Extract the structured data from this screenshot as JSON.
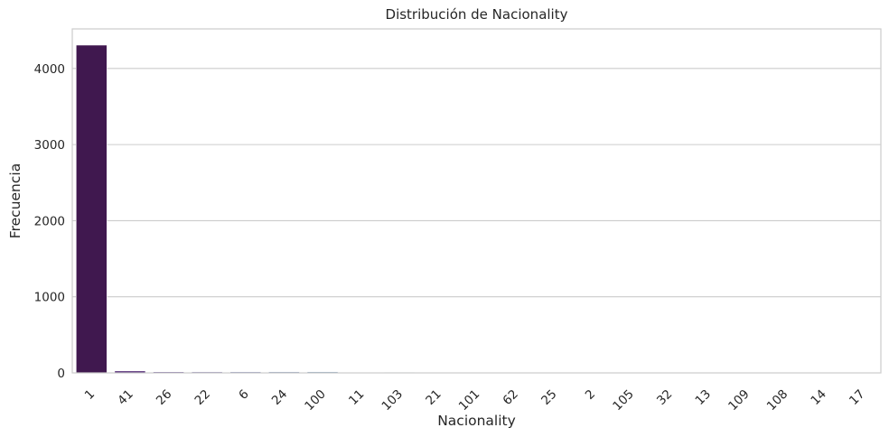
{
  "chart_data": {
    "type": "bar",
    "title": "Distribución de Nacionality",
    "xlabel": "Nacionality",
    "ylabel": "Frecuencia",
    "categories": [
      "1",
      "41",
      "26",
      "22",
      "6",
      "24",
      "100",
      "11",
      "103",
      "21",
      "101",
      "62",
      "25",
      "2",
      "105",
      "32",
      "13",
      "109",
      "108",
      "14",
      "17"
    ],
    "values": [
      4307,
      25,
      14,
      13,
      13,
      13,
      13,
      9,
      7,
      3,
      2,
      2,
      2,
      2,
      2,
      2,
      2,
      1,
      1,
      1,
      1
    ],
    "colors": [
      "#40184f",
      "#481c6e",
      "#472a7a",
      "#443983",
      "#3f4788",
      "#3a548c",
      "#35608d",
      "#306a8e",
      "#2c738e",
      "#287d8e",
      "#25858e",
      "#21918c",
      "#1f9a8a",
      "#23a486",
      "#2fb47c",
      "#3dbc74",
      "#51c56a",
      "#6ccd5a",
      "#89d548",
      "#b4de2c",
      "#d5e21a"
    ],
    "yticks": [
      0,
      1000,
      2000,
      3000,
      4000
    ],
    "ylim": [
      0,
      4520
    ],
    "grid": true,
    "xtick_rotation": -45
  }
}
